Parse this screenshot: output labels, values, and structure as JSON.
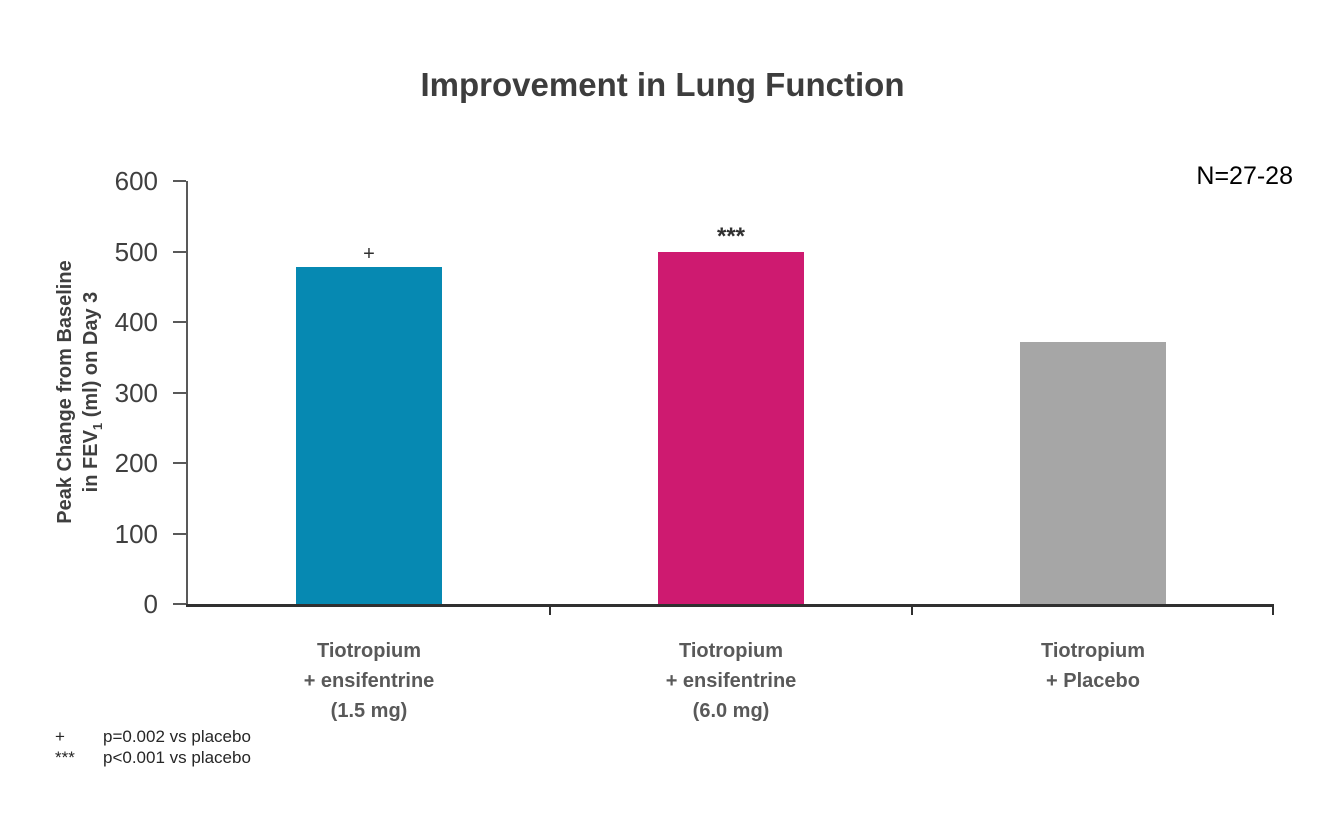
{
  "chart_data": {
    "type": "bar",
    "title": "Improvement in Lung Function",
    "n_label": "N=27-28",
    "ylabel": {
      "line1": "Peak Change from Baseline",
      "line2_prefix": "in FEV",
      "line2_sub": "1",
      "line2_suffix": " (ml) on Day 3"
    },
    "xlabel": "",
    "ylim": [
      0,
      600
    ],
    "yticks": [
      600,
      500,
      400,
      300,
      200,
      100,
      0
    ],
    "grid": false,
    "legend": false,
    "categories": [
      "Tiotropium\n+ ensifentrine\n(1.5 mg)",
      "Tiotropium\n+ ensifentrine\n(6.0 mg)",
      "Tiotropium\n+ Placebo"
    ],
    "values": [
      478,
      500,
      372
    ],
    "bar_colors": [
      "#0689B2",
      "#CE1A70",
      "#A6A6A6"
    ],
    "significance_markers": [
      "+",
      "***",
      ""
    ]
  },
  "footnotes": [
    {
      "symbol": "+",
      "text": "p=0.002 vs placebo"
    },
    {
      "symbol": "***",
      "text": "p<0.001 vs placebo"
    }
  ]
}
